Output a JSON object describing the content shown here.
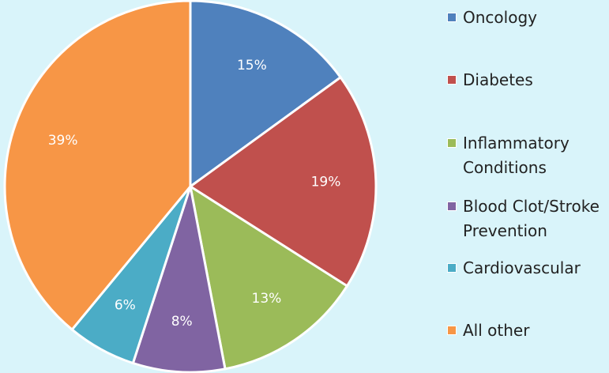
{
  "chart_data": {
    "type": "pie",
    "categories": [
      "Oncology",
      "Diabetes",
      "Inflammatory Conditions",
      "Blood Clot/Stroke Prevention",
      "Cardiovascular",
      "All other"
    ],
    "values": [
      15,
      19,
      13,
      8,
      6,
      39
    ],
    "value_labels": [
      "15%",
      "19%",
      "13%",
      "8%",
      "6%",
      "39%"
    ],
    "colors": [
      "#4f81bd",
      "#c0504d",
      "#9bbb59",
      "#8064a2",
      "#4bacc6",
      "#f79646"
    ],
    "legend": "right"
  }
}
